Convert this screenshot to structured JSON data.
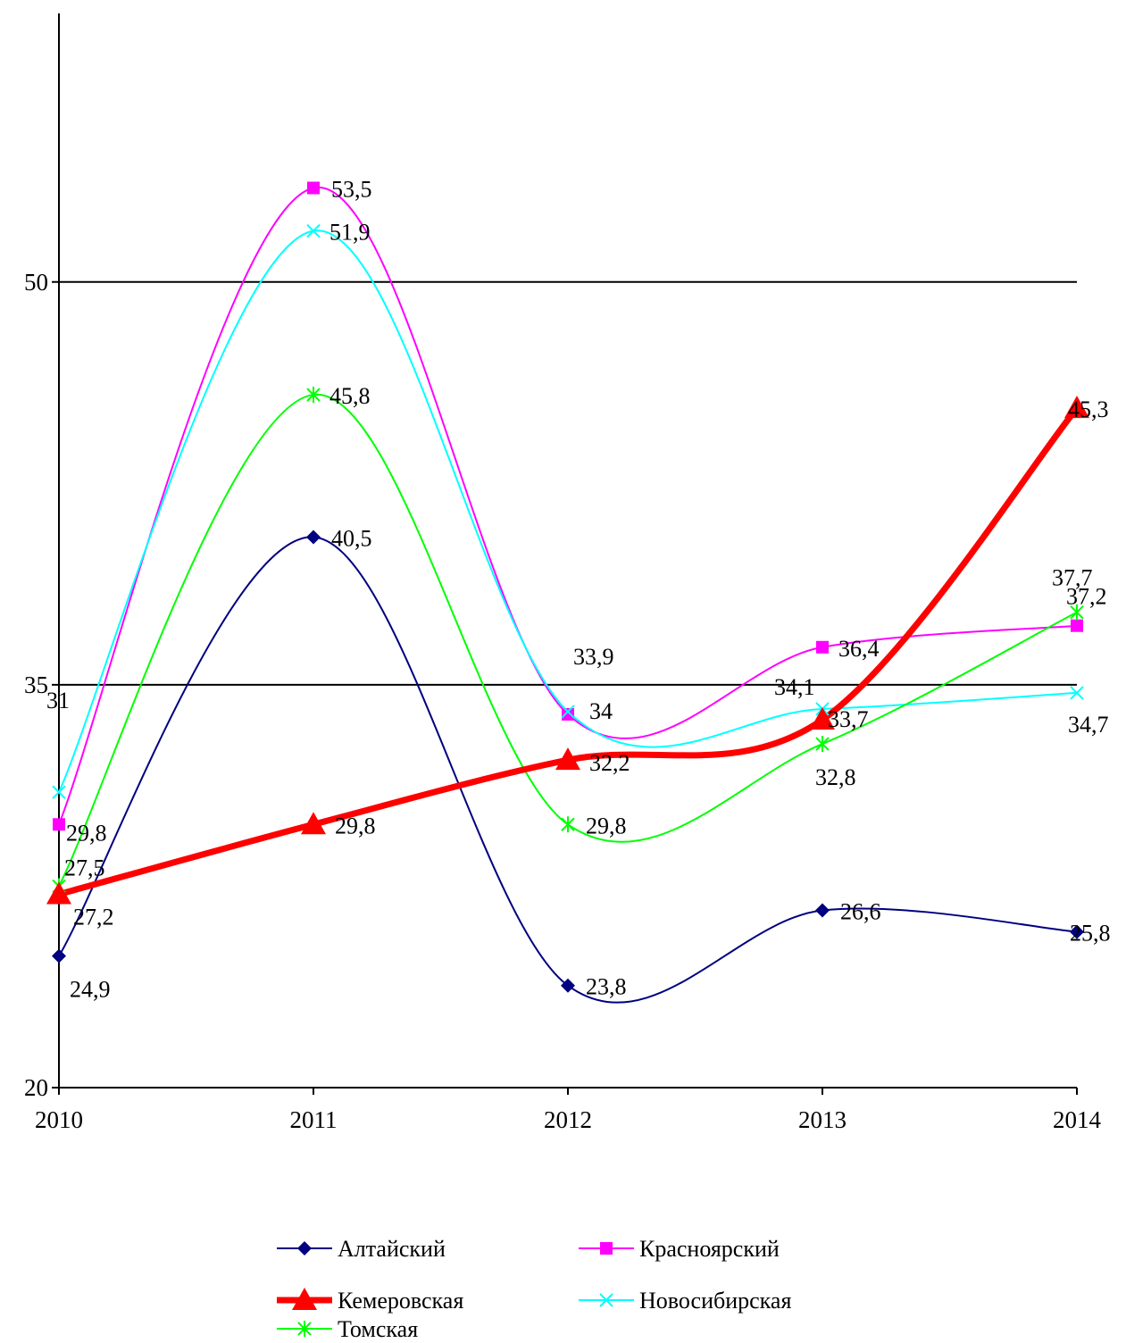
{
  "chart_data": {
    "type": "line",
    "smooth": true,
    "categories": [
      "2010",
      "2011",
      "2012",
      "2013",
      "2014"
    ],
    "ylim": [
      20,
      60
    ],
    "yticks": [
      "20",
      "35",
      "50"
    ],
    "grid": "horizontal major lines",
    "legend_position": "bottom",
    "series": [
      {
        "name": "Алтайский",
        "values": [
          24.9,
          40.5,
          23.8,
          26.6,
          25.8
        ],
        "labels": [
          "24,9",
          "40,5",
          "23,8",
          "26,6",
          "25,8"
        ],
        "color": "#000080",
        "marker": "diamond"
      },
      {
        "name": "Красноярский",
        "values": [
          29.8,
          53.5,
          33.9,
          36.4,
          37.2
        ],
        "labels": [
          "29,8",
          "53,5",
          "33,9",
          "36,4",
          "37,2"
        ],
        "color": "#ff00ff",
        "marker": "square"
      },
      {
        "name": "Кемеровская",
        "values": [
          27.2,
          29.8,
          32.2,
          33.7,
          45.3
        ],
        "labels": [
          "27,2",
          "29,8",
          "32,2",
          "33,7",
          "45,3"
        ],
        "color": "#ff0000",
        "marker": "triangle"
      },
      {
        "name": "Новосибирская",
        "values": [
          31,
          51.9,
          34,
          34.1,
          34.7
        ],
        "labels": [
          "31",
          "51,9",
          "34",
          "34,1",
          "34,7"
        ],
        "color": "#00ffff",
        "marker": "x"
      },
      {
        "name": "Томская",
        "values": [
          27.5,
          45.8,
          29.8,
          32.8,
          37.7
        ],
        "labels": [
          "27,5",
          "45,8",
          "29,8",
          "32,8",
          "37,7"
        ],
        "color": "#00ff00",
        "marker": "asterisk"
      }
    ]
  }
}
